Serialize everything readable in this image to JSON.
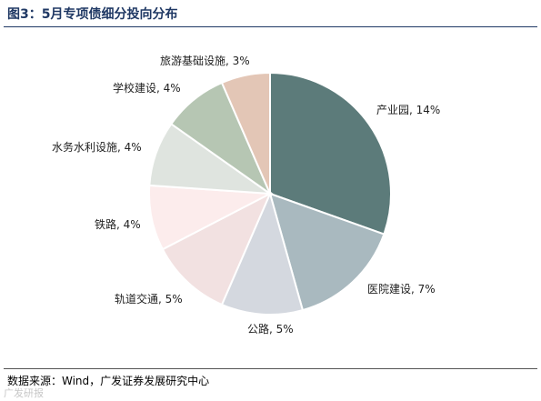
{
  "title": "图3：5月专项债细分投向分布",
  "source": "数据来源：Wind，广发证券发展研究中心",
  "watermark": "广发研报",
  "chart_data": {
    "type": "pie",
    "title": "图3：5月专项债细分投向分布",
    "slices": [
      {
        "label": "产业园",
        "value": 14,
        "display": "产业园, 14%",
        "color": "#5c7b7a"
      },
      {
        "label": "医院建设",
        "value": 7,
        "display": "医院建设, 7%",
        "color": "#a9b9bf"
      },
      {
        "label": "公路",
        "value": 5,
        "display": "公路, 5%",
        "color": "#d4d8df"
      },
      {
        "label": "轨道交通",
        "value": 5,
        "display": "轨道交通, 5%",
        "color": "#f2e1e1"
      },
      {
        "label": "铁路",
        "value": 4,
        "display": "铁路, 4%",
        "color": "#fcecec"
      },
      {
        "label": "水务水利设施",
        "value": 4,
        "display": "水务水利设施, 4%",
        "color": "#dfe4df"
      },
      {
        "label": "学校建设",
        "value": 4,
        "display": "学校建设, 4%",
        "color": "#b6c6b3"
      },
      {
        "label": "旅游基础设施",
        "value": 3,
        "display": "旅游基础设施, 3%",
        "color": "#e3c6b6"
      }
    ]
  }
}
